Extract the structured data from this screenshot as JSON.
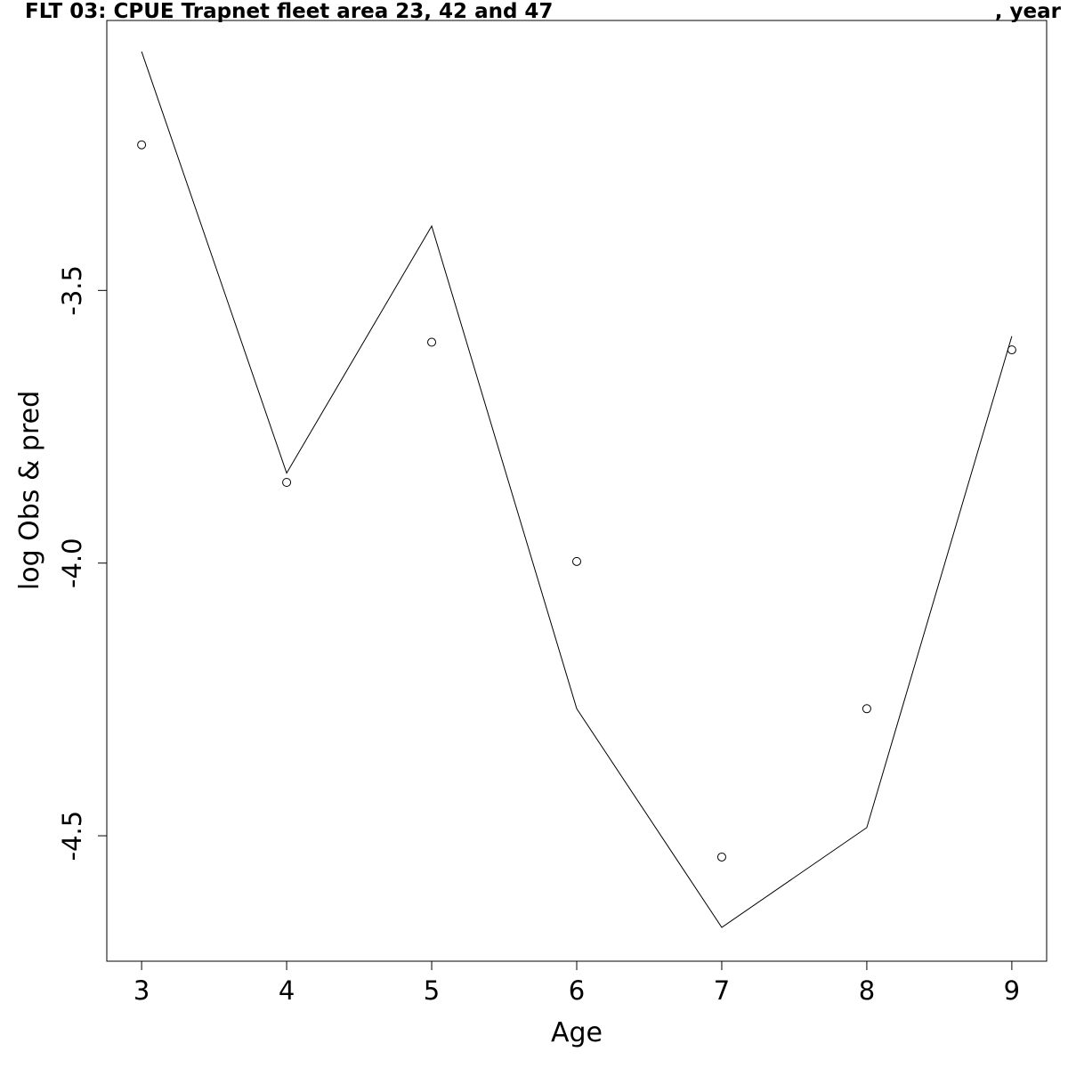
{
  "chart_data": {
    "type": "line",
    "title_left": "FLT 03: CPUE Trapnet fleet area 23, 42 and 47",
    "title_right": ", year",
    "xlabel": "Age",
    "ylabel": "log Obs & pred",
    "x": [
      3,
      4,
      5,
      6,
      7,
      8,
      9
    ],
    "xlim": [
      2.76,
      9.24
    ],
    "ylim": [
      -4.73,
      -3.005
    ],
    "xticks": [
      3,
      4,
      5,
      6,
      7,
      8,
      9
    ],
    "yticks": [
      -3.5,
      -4.0,
      -4.5
    ],
    "ytick_labels": [
      "-3.5",
      "-4.0",
      "-4.5"
    ],
    "series": [
      {
        "style": "line",
        "values": [
          -3.062,
          -3.835,
          -3.382,
          -4.267,
          -4.668,
          -4.485,
          -3.584
        ]
      },
      {
        "style": "points",
        "values": [
          -3.233,
          -3.852,
          -3.595,
          -3.997,
          -4.539,
          -4.267,
          -3.609
        ]
      }
    ],
    "grid": false
  }
}
